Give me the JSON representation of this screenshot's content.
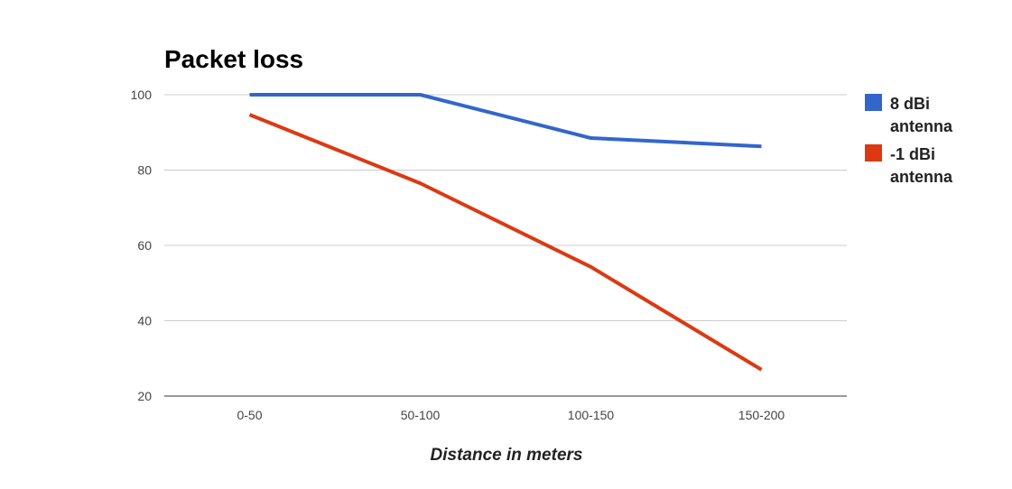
{
  "chart_data": {
    "type": "line",
    "title": "Packet loss",
    "xlabel": "Distance in meters",
    "ylabel": "",
    "categories": [
      "0-50",
      "50-100",
      "100-150",
      "150-200"
    ],
    "ylim": [
      20,
      100
    ],
    "yticks": [
      20,
      40,
      60,
      80,
      100
    ],
    "grid": true,
    "legend_position": "right",
    "series": [
      {
        "name": "8 dBi antenna",
        "name_lines": [
          "8 dBi",
          "antenna"
        ],
        "color": "#3366cc",
        "values": [
          100,
          100,
          88.5,
          86.3
        ]
      },
      {
        "name": "-1 dBi antenna",
        "name_lines": [
          "-1 dBi",
          "antenna"
        ],
        "color": "#dc3912",
        "values": [
          94.7,
          76.5,
          54.3,
          27
        ]
      }
    ]
  }
}
